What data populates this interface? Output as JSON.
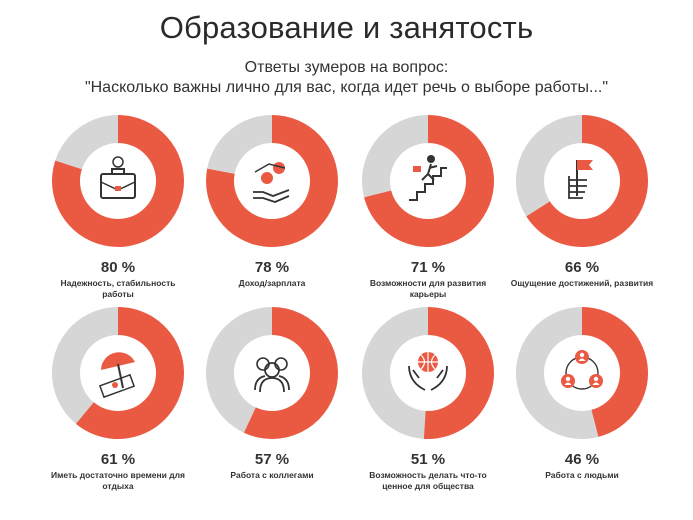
{
  "title": "Образование и занятость",
  "subtitle": {
    "line1": "Ответы зумеров на вопрос:",
    "line2": "\"Насколько важны лично для вас, когда идет речь о выборе работы...\""
  },
  "colors": {
    "accent": "#ea5a43",
    "track": "#d6d6d6",
    "icon": "#333333"
  },
  "chart_data": {
    "type": "pie",
    "subtype": "donut-grid",
    "unit": "%",
    "items": [
      {
        "label": "Надежность, стабильность работы",
        "value": 80,
        "display": "80 %",
        "icon": "briefcase-icon"
      },
      {
        "label": "Доход/зарплата",
        "value": 78,
        "display": "78 %",
        "icon": "money-hand-icon"
      },
      {
        "label": "Возможности для развития карьеры",
        "value": 71,
        "display": "71 %",
        "icon": "stairs-climb-icon"
      },
      {
        "label": "Ощущение достижений, развития",
        "value": 66,
        "display": "66 %",
        "icon": "flag-hand-icon"
      },
      {
        "label": "Иметь достаточно времени для отдыха",
        "value": 61,
        "display": "61 %",
        "icon": "beach-umbrella-icon"
      },
      {
        "label": "Работа с коллегами",
        "value": 57,
        "display": "57 %",
        "icon": "colleagues-icon"
      },
      {
        "label": "Возможность делать что-то ценное для общества",
        "value": 51,
        "display": "51 %",
        "icon": "globe-hands-icon"
      },
      {
        "label": "Работа с людьми",
        "value": 46,
        "display": "46 %",
        "icon": "people-network-icon"
      }
    ]
  }
}
